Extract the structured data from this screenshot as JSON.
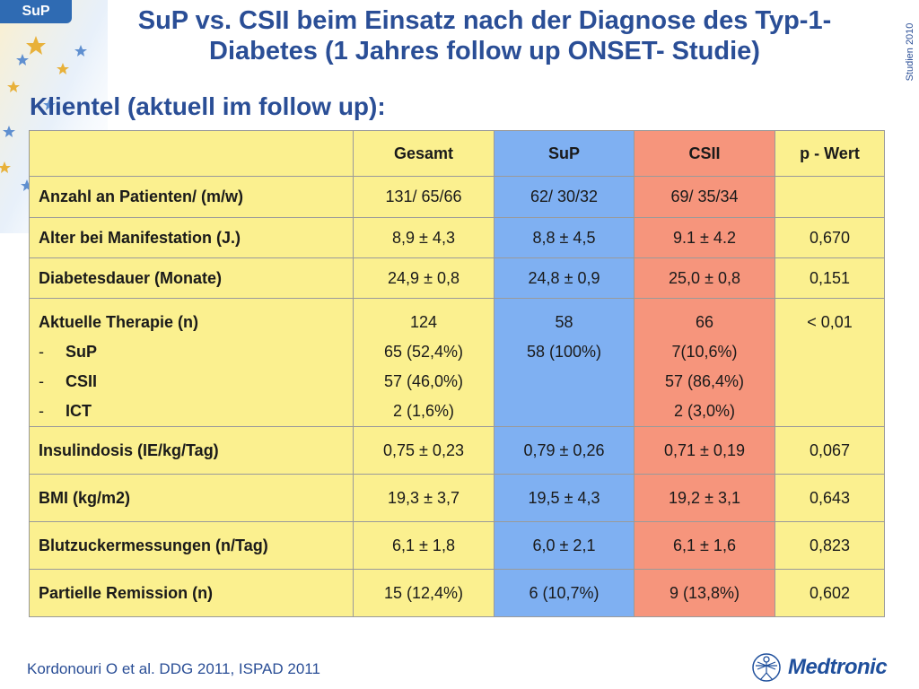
{
  "brand_tab": "SuP",
  "side_label": "Studien 2010",
  "title": "SuP vs. CSII beim Einsatz nach der Diagnose des Typ-1-Diabetes (1 Jahres follow up ONSET- Studie)",
  "subtitle": "Klientel (aktuell im follow up):",
  "table": {
    "headers": [
      "",
      "Gesamt",
      "SuP",
      "CSII",
      "p - Wert"
    ],
    "rows": [
      [
        "Anzahl an Patienten/ (m/w)",
        "131/ 65/66",
        "62/ 30/32",
        "69/ 35/34",
        ""
      ],
      [
        "Alter bei Manifestation (J.)",
        "8,9 ± 4,3",
        "8,8 ± 4,5",
        "9.1 ± 4.2",
        "0,670"
      ],
      [
        "Diabetesdauer (Monate)",
        "24,9 ± 0,8",
        "24,8 ± 0,9",
        "25,0 ± 0,8",
        "0,151"
      ]
    ],
    "therapy": {
      "label": "Aktuelle Therapie (n)",
      "items": [
        "SuP",
        "CSII",
        "ICT"
      ],
      "dash": "-",
      "gesamt": [
        "124",
        "65 (52,4%)",
        "57 (46,0%)",
        "2 (1,6%)"
      ],
      "sup": [
        "58",
        "58 (100%)"
      ],
      "csii": [
        "66",
        "7(10,6%)",
        "57 (86,4%)",
        "2 (3,0%)"
      ],
      "p": "< 0,01"
    },
    "rows2": [
      [
        "Insulindosis (IE/kg/Tag)",
        "0,75 ± 0,23",
        "0,79 ± 0,26",
        "0,71 ± 0,19",
        "0,067"
      ],
      [
        "BMI (kg/m2)",
        "19,3 ± 3,7",
        "19,5 ± 4,3",
        "19,2 ± 3,1",
        "0,643"
      ],
      [
        "Blutzuckermessungen (n/Tag)",
        "6,1 ± 1,8",
        "6,0 ± 2,1",
        "6,1 ± 1,6",
        "0,823"
      ],
      [
        "Partielle Remission (n)",
        "15 (12,4%)",
        "6 (10,7%)",
        "9 (13,8%)",
        "0,602"
      ]
    ]
  },
  "footer": "Kordonouri O et al. DDG 2011, ISPAD 2011",
  "logo_text": "Medtronic",
  "colors": {
    "title": "#2a4e96",
    "gesamt_bg": "#fbf08f",
    "sup_bg": "#7fb0f2",
    "csii_bg": "#f6957c"
  }
}
